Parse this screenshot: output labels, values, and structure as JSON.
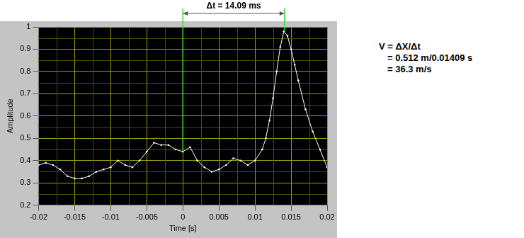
{
  "chart_data": {
    "type": "line",
    "x_label": "Time [s]",
    "y_label": "Amplitude",
    "x": [
      -0.02,
      -0.019,
      -0.018,
      -0.017,
      -0.016,
      -0.015,
      -0.014,
      -0.013,
      -0.012,
      -0.011,
      -0.01,
      -0.009,
      -0.008,
      -0.007,
      -0.006,
      -0.005,
      -0.004,
      -0.003,
      -0.002,
      -0.001,
      0,
      0.001,
      0.002,
      0.003,
      0.004,
      0.005,
      0.006,
      0.007,
      0.008,
      0.009,
      0.01,
      0.011,
      0.0115,
      0.012,
      0.0125,
      0.013,
      0.0135,
      0.014,
      0.0145,
      0.015,
      0.0155,
      0.016,
      0.017,
      0.018,
      0.019,
      0.02
    ],
    "values": [
      0.38,
      0.39,
      0.38,
      0.36,
      0.33,
      0.32,
      0.32,
      0.33,
      0.35,
      0.36,
      0.37,
      0.4,
      0.38,
      0.37,
      0.4,
      0.44,
      0.48,
      0.47,
      0.47,
      0.45,
      0.44,
      0.46,
      0.4,
      0.37,
      0.35,
      0.36,
      0.38,
      0.41,
      0.4,
      0.38,
      0.4,
      0.45,
      0.5,
      0.58,
      0.68,
      0.8,
      0.91,
      0.98,
      0.96,
      0.9,
      0.83,
      0.76,
      0.63,
      0.53,
      0.45,
      0.37
    ],
    "color": "#ffffff",
    "marker": "dot",
    "line_style": "solid",
    "xlim": [
      -0.02,
      0.02
    ],
    "xticks": [
      -0.02,
      -0.015,
      -0.01,
      -0.005,
      0,
      0.005,
      0.01,
      0.015,
      0.02
    ],
    "ylim": [
      0.2,
      1
    ],
    "yticks": [
      0.2,
      0.3,
      0.4,
      0.5,
      0.6,
      0.7,
      0.8,
      0.9,
      1
    ],
    "grid": true,
    "annotations": [
      {
        "text": "Δt = 14.09 ms",
        "points": [
          [
            0,
            0.44
          ],
          [
            0.01409,
            0.98
          ]
        ]
      }
    ],
    "notes": [
      "V = ΔX/Δt",
      "= 0.512 m/0.01409 s",
      "= 36.3 m/s"
    ]
  }
}
